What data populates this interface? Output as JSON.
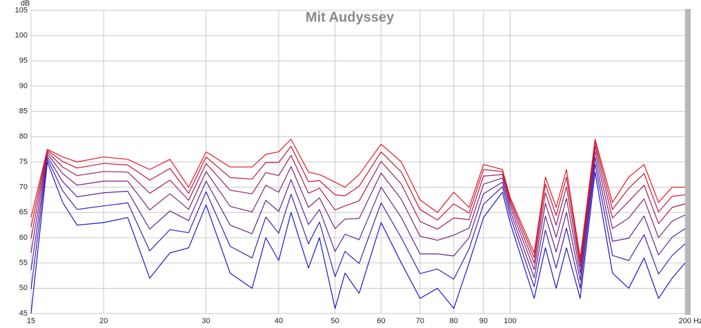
{
  "chart_data": {
    "type": "line",
    "title": "Mit Audyssey",
    "y_label": "dB",
    "xscale": "log",
    "grid": true,
    "x": [
      15,
      16,
      17,
      18,
      20,
      22,
      24,
      26,
      28,
      30,
      33,
      36,
      38,
      40,
      42,
      45,
      47,
      50,
      52,
      55,
      60,
      65,
      70,
      75,
      80,
      85,
      90,
      97,
      100,
      110,
      115,
      120,
      125,
      132,
      140,
      150,
      160,
      170,
      180,
      190,
      200
    ],
    "xlim": [
      15,
      200
    ],
    "xticks": [
      15,
      20,
      30,
      40,
      50,
      60,
      70,
      80,
      90,
      100,
      {
        "value": 200,
        "label": "200 Hz"
      }
    ],
    "ylim": [
      45,
      105
    ],
    "yticks": [
      45,
      50,
      55,
      60,
      65,
      70,
      75,
      80,
      85,
      90,
      95,
      100,
      105
    ],
    "series": [
      {
        "color": "#e8141e",
        "values": [
          64,
          77.5,
          76,
          75,
          76,
          75.5,
          73.5,
          75.5,
          70,
          77,
          74,
          74,
          76.5,
          77,
          79.5,
          73,
          72.5,
          71,
          70,
          72.5,
          78.5,
          75,
          67.5,
          65,
          69,
          66,
          74.5,
          73.5,
          68,
          57,
          72,
          66,
          73.5,
          56,
          79.5,
          67,
          72,
          74.5,
          67,
          70,
          70
        ]
      },
      {
        "color": "#c41436",
        "values": [
          62.1,
          77.3,
          75.1,
          73.8,
          74.7,
          74.4,
          71.4,
          73.7,
          68.8,
          76,
          71.9,
          71.6,
          74.9,
          74.9,
          78.1,
          71.1,
          71.3,
          68.5,
          68.3,
          70.2,
          77,
          73,
          65.6,
          63.5,
          66.7,
          64.9,
          73.5,
          73.1,
          67.5,
          56.1,
          70.6,
          64.4,
          72,
          55.2,
          78.9,
          65.6,
          69.8,
          72.7,
          65.1,
          68.2,
          68.5
        ]
      },
      {
        "color": "#a01c56",
        "values": [
          59.8,
          77,
          74,
          72.3,
          73.1,
          73,
          68.8,
          71.4,
          67.4,
          74.7,
          69.4,
          68.7,
          72.9,
          72.3,
          76.3,
          68.8,
          69.8,
          65.5,
          66.3,
          67.3,
          75.1,
          70.6,
          63.2,
          61.7,
          63.9,
          63.6,
          72.2,
          72.5,
          66.9,
          55,
          68.9,
          62.5,
          70.1,
          54.2,
          78.1,
          63.9,
          67.2,
          70.4,
          62.8,
          66,
          66.7
        ]
      },
      {
        "color": "#7e2276",
        "values": [
          57,
          76.6,
          72.7,
          70.4,
          71.2,
          71.2,
          65.5,
          68.7,
          65.6,
          73.1,
          66.2,
          65.1,
          70.4,
          69,
          74.1,
          66,
          67.9,
          61.8,
          63.7,
          63.8,
          72.8,
          67.6,
          60.3,
          59.5,
          60.5,
          61.9,
          70.6,
          71.8,
          66.2,
          53.7,
          66.8,
          60.1,
          67.8,
          53,
          77.1,
          61.8,
          63.9,
          67.7,
          60,
          63.3,
          64.5
        ]
      },
      {
        "color": "#5c2296",
        "values": [
          53.6,
          76.1,
          71.1,
          68.1,
          68.9,
          69.2,
          61.7,
          65.3,
          63.4,
          71.2,
          62.5,
          60.8,
          67.4,
          65.2,
          71.5,
          62.6,
          65.6,
          57.3,
          60.7,
          59.6,
          70,
          64,
          56.8,
          56.8,
          56.4,
          60,
          68.7,
          71,
          65.3,
          52.1,
          64.3,
          57.2,
          65,
          51.6,
          75.9,
          59.3,
          59.9,
          64.3,
          56.6,
          60.1,
          61.8
        ]
      },
      {
        "color": "#3c1eb4",
        "values": [
          49.8,
          75.6,
          69.3,
          65.6,
          66.3,
          66.9,
          57.4,
          61.6,
          61,
          69.1,
          58.3,
          56,
          64.1,
          60.9,
          68.6,
          58.8,
          63.1,
          52.3,
          57.3,
          54.9,
          66.9,
          60,
          52.9,
          53.8,
          51.8,
          57.8,
          66.6,
          70.1,
          64.3,
          50.3,
          61.5,
          54,
          61.9,
          50,
          74.6,
          56.5,
          55.5,
          60.6,
          52.8,
          56.5,
          58.8
        ]
      },
      {
        "color": "#1a14d2",
        "values": [
          45,
          75,
          67,
          62.5,
          63,
          64,
          52,
          57,
          58,
          66.5,
          53,
          50,
          60,
          55.5,
          65,
          54,
          60,
          46,
          53,
          49,
          63,
          55,
          48,
          50,
          46,
          55,
          64,
          69,
          63,
          48,
          58,
          50,
          58,
          48,
          73,
          53,
          50,
          56,
          48,
          52,
          55
        ]
      }
    ]
  }
}
